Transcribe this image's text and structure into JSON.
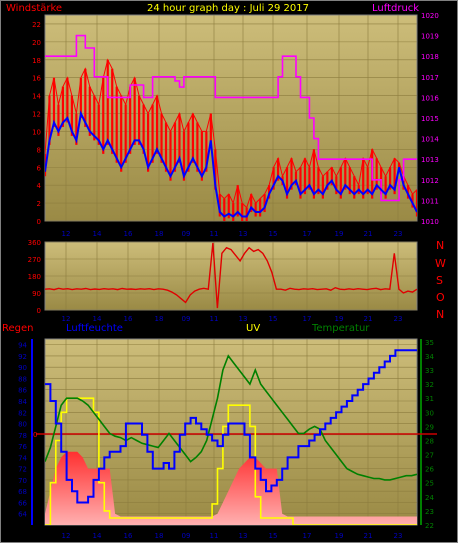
{
  "title": "24 hour graph day : Juli 29 2017",
  "colors": {
    "frame": "#808080",
    "plot_top": "#cdbd7a",
    "plot_bottom": "#9a8a45",
    "wind_gust": "#ff0000",
    "wind_avg": "#0000ff",
    "pressure": "#ff00ff",
    "direction": "#e00000",
    "humidity": "#0000ff",
    "uv": "#ffff00",
    "temperature": "#008000",
    "rain_bar": "#ff2020",
    "rain_line": "#cc0000",
    "label_red": "#ff0000",
    "label_magenta": "#ff00ff",
    "label_blue": "#0000ff",
    "label_yellow": "#ffff00",
    "label_green": "#008000"
  },
  "chart_data": [
    {
      "type": "line",
      "title": "24 hour graph day : Juli 29 2017",
      "y_left_label": "Windstärke",
      "y_right_label": "Luftdruck",
      "x_tick_labels": [
        "12",
        "14",
        "16",
        "18",
        "09",
        "11",
        "13",
        "15",
        "17",
        "19",
        "21",
        "23"
      ],
      "y_left_ticks": [
        "0",
        "2",
        "4",
        "6",
        "8",
        "10",
        "12",
        "14",
        "16",
        "18",
        "20",
        "22"
      ],
      "y_right_ticks": [
        "1010",
        "1011",
        "1012",
        "1013",
        "1014",
        "1015",
        "1016",
        "1017",
        "1018",
        "1019",
        "1020"
      ],
      "y_left_range": [
        0,
        23
      ],
      "y_right_range": [
        1010,
        1020
      ],
      "grid": true,
      "series": [
        {
          "key": "gust",
          "color": "wind_gust",
          "values": [
            7.5,
            14,
            16,
            13,
            15,
            16,
            14,
            12,
            16,
            17,
            15,
            14,
            13,
            16,
            18,
            17,
            15,
            14,
            13,
            15,
            16,
            14,
            13,
            12,
            13,
            14,
            12,
            11,
            10,
            11,
            12,
            10,
            11,
            12,
            11,
            10,
            10,
            12,
            8,
            3,
            2.5,
            3,
            2,
            4,
            2,
            1.5,
            3,
            2,
            2.5,
            3,
            4,
            6,
            7,
            5,
            6,
            7,
            5.5,
            6,
            7,
            6,
            8,
            6,
            5,
            5.5,
            6,
            5,
            6,
            7,
            6,
            5,
            4,
            7,
            6,
            8,
            7,
            6,
            5,
            6,
            7,
            6.5,
            5,
            4,
            3,
            3.5
          ]
        },
        {
          "key": "avg",
          "color": "wind_avg",
          "values": [
            5.5,
            9,
            11,
            10,
            11,
            11.5,
            10,
            9,
            12,
            11,
            10,
            9.5,
            9,
            8,
            9,
            8,
            7,
            6,
            7,
            8,
            9,
            9,
            8,
            6,
            7,
            8,
            7,
            6,
            5,
            6,
            7,
            5,
            6,
            7,
            6,
            5,
            6,
            9,
            4,
            1,
            0.5,
            0.8,
            0.5,
            1,
            0.5,
            0.5,
            1.5,
            1,
            1,
            1.5,
            3,
            4,
            5,
            4.5,
            3,
            4,
            4.5,
            3,
            3.5,
            4,
            3,
            3.5,
            3,
            4,
            4.5,
            3.5,
            3,
            4,
            3.5,
            3,
            3.5,
            3,
            3.5,
            3,
            4,
            3.5,
            3,
            4,
            3.5,
            6,
            4,
            3,
            2,
            1
          ]
        },
        {
          "key": "pressure",
          "color": "pressure",
          "values": [
            1018,
            1018,
            1018,
            1018,
            1018,
            1018,
            1018,
            1019,
            1019,
            1018.4,
            1018.4,
            1017,
            1017,
            1017,
            1016,
            1016,
            1016,
            1016,
            1016,
            1016.6,
            1016.6,
            1016.6,
            1016,
            1016,
            1017,
            1017,
            1017,
            1017,
            1017,
            1016.8,
            1016.5,
            1017,
            1017,
            1017,
            1017,
            1017,
            1017,
            1017,
            1016,
            1016,
            1016,
            1016,
            1016,
            1016,
            1016,
            1016,
            1016,
            1016,
            1016,
            1016,
            1016,
            1016,
            1017,
            1018,
            1018,
            1018,
            1017,
            1016,
            1016,
            1015,
            1014,
            1013,
            1013,
            1013,
            1013,
            1013,
            1013,
            1013,
            1013,
            1013,
            1013,
            1013,
            1013,
            1012,
            1012,
            1011,
            1011,
            1011,
            1011,
            1012,
            1013,
            1013,
            1013,
            1013
          ]
        }
      ]
    },
    {
      "type": "line",
      "y_label": "",
      "direction_labels": [
        "N",
        "W",
        "S",
        "O",
        "N"
      ],
      "y_ticks": [
        "0",
        "90",
        "180",
        "270",
        "360"
      ],
      "y_range": [
        0,
        360
      ],
      "grid": true,
      "series": [
        {
          "key": "direction",
          "color": "direction",
          "values": [
            110,
            112,
            108,
            115,
            110,
            113,
            108,
            112,
            110,
            114,
            108,
            111,
            109,
            113,
            110,
            112,
            108,
            114,
            110,
            111,
            109,
            112,
            110,
            113,
            108,
            112,
            110,
            105,
            95,
            80,
            60,
            40,
            80,
            100,
            110,
            115,
            110,
            355,
            10,
            300,
            330,
            320,
            290,
            260,
            300,
            330,
            310,
            320,
            300,
            260,
            200,
            110,
            110,
            105,
            115,
            110,
            108,
            112,
            110,
            113,
            108,
            110,
            112,
            105,
            118,
            110,
            108,
            112,
            109,
            113,
            110,
            108,
            112,
            115,
            108,
            112,
            110,
            300,
            110,
            90,
            100,
            95,
            110
          ]
        }
      ]
    },
    {
      "type": "line",
      "y_labels": [
        "Regen",
        "Luftfeuchte",
        "UV",
        "Temperatur"
      ],
      "y_left_ticks": [
        "64",
        "66",
        "68",
        "70",
        "72",
        "74",
        "76",
        "78",
        "80",
        "82",
        "84",
        "86",
        "88",
        "90",
        "92",
        "94"
      ],
      "y_left_range": [
        62,
        95
      ],
      "y_right_ticks": [
        "22",
        "23",
        "24",
        "25",
        "26",
        "27",
        "28",
        "29",
        "30",
        "31",
        "32",
        "33",
        "34",
        "35"
      ],
      "y_right_range": [
        22,
        35.2
      ],
      "rain_label": "0",
      "grid": true,
      "series": [
        {
          "key": "humidity",
          "color": "humidity",
          "values": [
            87,
            84,
            80,
            75,
            70,
            68,
            66,
            66,
            67,
            70,
            72,
            74,
            75,
            75,
            76,
            80,
            80,
            80,
            78,
            75,
            72,
            72,
            73,
            72,
            75,
            78,
            80,
            81,
            80,
            79,
            78,
            77,
            76,
            78,
            80,
            80,
            80,
            78,
            74,
            72,
            70,
            68,
            69,
            70,
            72,
            74,
            74,
            76,
            76,
            77,
            78,
            79,
            80,
            81,
            82,
            83,
            84,
            85,
            86,
            87,
            88,
            89,
            90,
            91,
            92,
            93,
            93,
            93,
            93,
            93
          ]
        },
        {
          "key": "uv",
          "color": "uv",
          "values": [
            22,
            25,
            28,
            30,
            31,
            31,
            31,
            31,
            31,
            30,
            25,
            23,
            22.5,
            22.5,
            22.5,
            22.5,
            22.5,
            22.5,
            22.5,
            22.5,
            22.5,
            22.5,
            22.5,
            22.5,
            22.5,
            22.5,
            22.5,
            22.5,
            22.5,
            22.5,
            22.5,
            23.5,
            26,
            29,
            30.5,
            30.5,
            30.5,
            30.5,
            29,
            24,
            22.5,
            22.5,
            22.5,
            22.5,
            22.5,
            22.5,
            22,
            22,
            22,
            22,
            22,
            22,
            22,
            22,
            22,
            22,
            22,
            22,
            22,
            22,
            22,
            22,
            22,
            22,
            22,
            22,
            22,
            22,
            22,
            22
          ]
        },
        {
          "key": "temperature",
          "color": "temperature",
          "values": [
            26.5,
            27.5,
            29,
            30.5,
            31,
            31,
            31,
            30.8,
            30.5,
            30,
            29.5,
            29,
            28.5,
            28.3,
            28.2,
            28,
            28.2,
            28,
            27.8,
            27.7,
            27.6,
            27.5,
            28,
            28.5,
            28,
            27.5,
            27,
            26.5,
            26.8,
            27.2,
            28,
            29.5,
            31,
            33,
            34,
            33.5,
            33,
            32.5,
            32,
            33,
            32,
            31.5,
            31,
            30.5,
            30,
            29.5,
            29,
            28.5,
            28.5,
            28.8,
            29,
            28.8,
            28,
            27.5,
            27,
            26.5,
            26,
            25.8,
            25.6,
            25.5,
            25.4,
            25.3,
            25.3,
            25.2,
            25.2,
            25.3,
            25.4,
            25.5,
            25.5,
            25.6
          ]
        },
        {
          "key": "rain",
          "color": "rain_bar",
          "values": [
            64,
            68,
            72,
            74,
            75,
            75,
            75,
            74,
            72,
            72,
            72,
            72,
            72,
            64,
            63.5,
            63.5,
            63.5,
            63.5,
            63.5,
            63.5,
            63.5,
            63.5,
            63.5,
            63.5,
            63.5,
            63.5,
            63.5,
            63.5,
            63.5,
            63.5,
            63.5,
            63.5,
            64,
            66,
            68,
            70,
            72,
            73,
            74,
            74,
            73,
            72,
            72,
            72,
            64,
            63.5,
            63.5,
            63.5,
            63.5,
            63.5,
            63.5,
            63.5,
            63.5,
            63.5,
            63.5,
            63.5,
            63.5,
            63.5,
            63.5,
            63.5,
            63.5,
            63.5,
            63.5,
            63.5,
            63.5,
            63.5,
            63.5,
            63.5,
            63.5,
            63.5
          ]
        }
      ]
    }
  ]
}
